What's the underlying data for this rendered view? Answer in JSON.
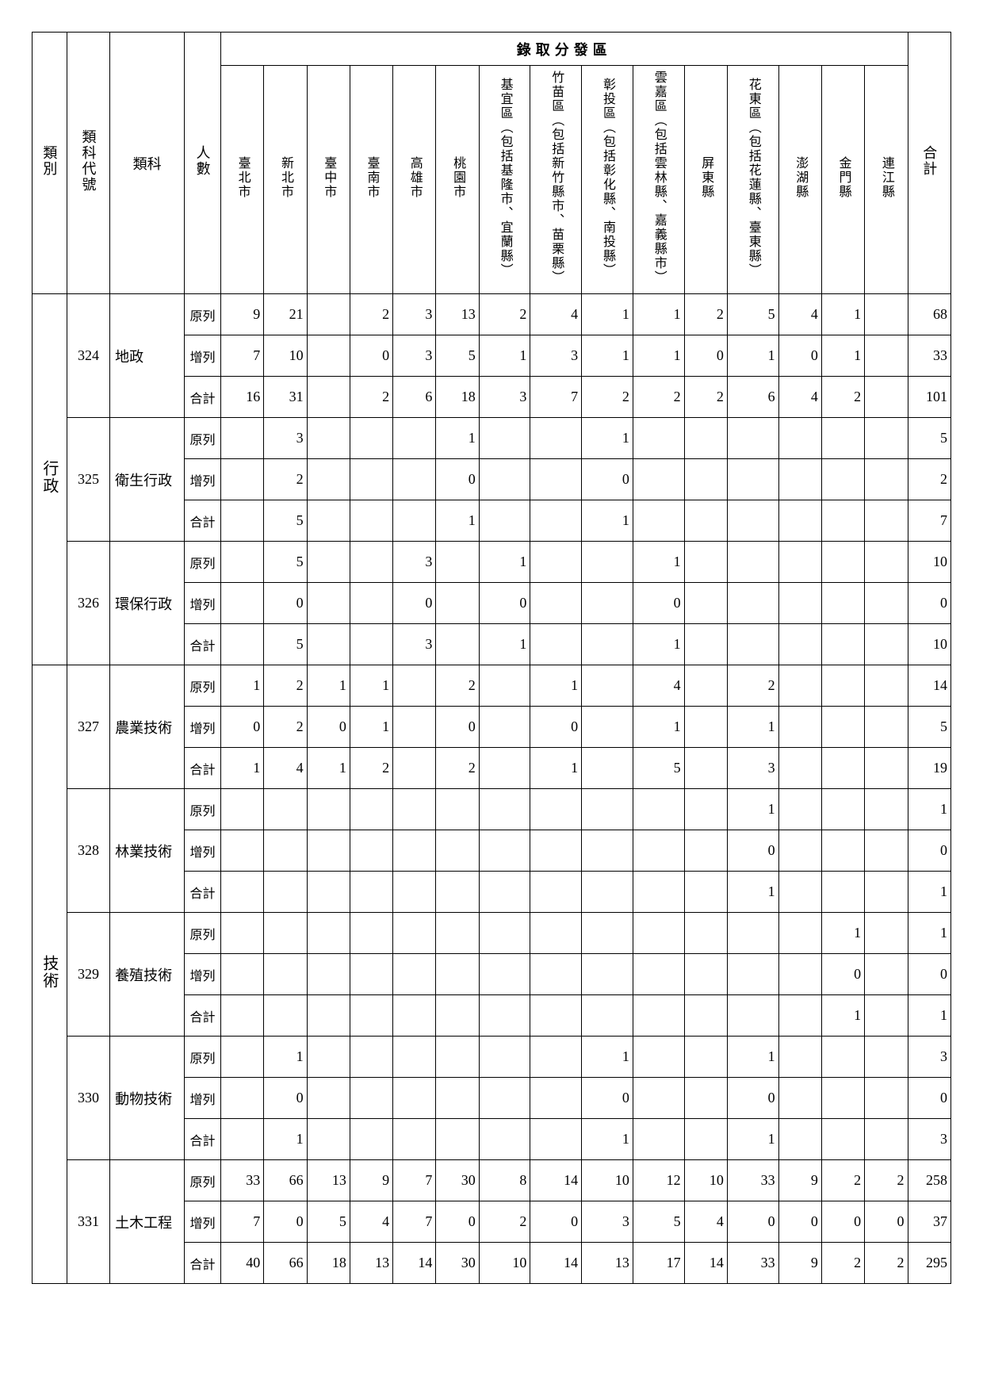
{
  "headers": {
    "category": "類別",
    "code": "類科代號",
    "subject": "類科",
    "count": "人數",
    "regionGroup": "錄取分發區",
    "total": "合計",
    "regions": [
      "臺北市",
      "新北市",
      "臺中市",
      "臺南市",
      "高雄市",
      "桃園市",
      "基宜區（包括基隆市、宜蘭縣）",
      "竹苗區（包括新竹縣市、苗栗縣）",
      "彰投區（包括彰化縣、南投縣）",
      "雲嘉區（包括雲林縣、嘉義縣市）",
      "屏東縣",
      "花東區（包括花蓮縣、臺東縣）",
      "澎湖縣",
      "金門縣",
      "連江縣"
    ]
  },
  "rowTypes": [
    "原列",
    "增列",
    "合計"
  ],
  "categories": [
    {
      "name": "行政",
      "subjects": [
        {
          "code": "324",
          "name": "地政",
          "rows": [
            [
              "9",
              "21",
              "",
              "2",
              "3",
              "13",
              "2",
              "4",
              "1",
              "1",
              "2",
              "5",
              "4",
              "1",
              "",
              "68"
            ],
            [
              "7",
              "10",
              "",
              "0",
              "3",
              "5",
              "1",
              "3",
              "1",
              "1",
              "0",
              "1",
              "0",
              "1",
              "",
              "33"
            ],
            [
              "16",
              "31",
              "",
              "2",
              "6",
              "18",
              "3",
              "7",
              "2",
              "2",
              "2",
              "6",
              "4",
              "2",
              "",
              "101"
            ]
          ]
        },
        {
          "code": "325",
          "name": "衛生行政",
          "rows": [
            [
              "",
              "3",
              "",
              "",
              "",
              "1",
              "",
              "",
              "1",
              "",
              "",
              "",
              "",
              "",
              "",
              "5"
            ],
            [
              "",
              "2",
              "",
              "",
              "",
              "0",
              "",
              "",
              "0",
              "",
              "",
              "",
              "",
              "",
              "",
              "2"
            ],
            [
              "",
              "5",
              "",
              "",
              "",
              "1",
              "",
              "",
              "1",
              "",
              "",
              "",
              "",
              "",
              "",
              "7"
            ]
          ]
        },
        {
          "code": "326",
          "name": "環保行政",
          "rows": [
            [
              "",
              "5",
              "",
              "",
              "3",
              "",
              "1",
              "",
              "",
              "1",
              "",
              "",
              "",
              "",
              "",
              "10"
            ],
            [
              "",
              "0",
              "",
              "",
              "0",
              "",
              "0",
              "",
              "",
              "0",
              "",
              "",
              "",
              "",
              "",
              "0"
            ],
            [
              "",
              "5",
              "",
              "",
              "3",
              "",
              "1",
              "",
              "",
              "1",
              "",
              "",
              "",
              "",
              "",
              "10"
            ]
          ]
        }
      ]
    },
    {
      "name": "技術",
      "subjects": [
        {
          "code": "327",
          "name": "農業技術",
          "rows": [
            [
              "1",
              "2",
              "1",
              "1",
              "",
              "2",
              "",
              "1",
              "",
              "4",
              "",
              "2",
              "",
              "",
              "",
              "14"
            ],
            [
              "0",
              "2",
              "0",
              "1",
              "",
              "0",
              "",
              "0",
              "",
              "1",
              "",
              "1",
              "",
              "",
              "",
              "5"
            ],
            [
              "1",
              "4",
              "1",
              "2",
              "",
              "2",
              "",
              "1",
              "",
              "5",
              "",
              "3",
              "",
              "",
              "",
              "19"
            ]
          ]
        },
        {
          "code": "328",
          "name": "林業技術",
          "rows": [
            [
              "",
              "",
              "",
              "",
              "",
              "",
              "",
              "",
              "",
              "",
              "",
              "1",
              "",
              "",
              "",
              "1"
            ],
            [
              "",
              "",
              "",
              "",
              "",
              "",
              "",
              "",
              "",
              "",
              "",
              "0",
              "",
              "",
              "",
              "0"
            ],
            [
              "",
              "",
              "",
              "",
              "",
              "",
              "",
              "",
              "",
              "",
              "",
              "1",
              "",
              "",
              "",
              "1"
            ]
          ]
        },
        {
          "code": "329",
          "name": "養殖技術",
          "rows": [
            [
              "",
              "",
              "",
              "",
              "",
              "",
              "",
              "",
              "",
              "",
              "",
              "",
              "",
              "1",
              "",
              "1"
            ],
            [
              "",
              "",
              "",
              "",
              "",
              "",
              "",
              "",
              "",
              "",
              "",
              "",
              "",
              "0",
              "",
              "0"
            ],
            [
              "",
              "",
              "",
              "",
              "",
              "",
              "",
              "",
              "",
              "",
              "",
              "",
              "",
              "1",
              "",
              "1"
            ]
          ]
        },
        {
          "code": "330",
          "name": "動物技術",
          "rows": [
            [
              "",
              "1",
              "",
              "",
              "",
              "",
              "",
              "",
              "1",
              "",
              "",
              "1",
              "",
              "",
              "",
              "3"
            ],
            [
              "",
              "0",
              "",
              "",
              "",
              "",
              "",
              "",
              "0",
              "",
              "",
              "0",
              "",
              "",
              "",
              "0"
            ],
            [
              "",
              "1",
              "",
              "",
              "",
              "",
              "",
              "",
              "1",
              "",
              "",
              "1",
              "",
              "",
              "",
              "3"
            ]
          ]
        },
        {
          "code": "331",
          "name": "土木工程",
          "rows": [
            [
              "33",
              "66",
              "13",
              "9",
              "7",
              "30",
              "8",
              "14",
              "10",
              "12",
              "10",
              "33",
              "9",
              "2",
              "2",
              "258"
            ],
            [
              "7",
              "0",
              "5",
              "4",
              "7",
              "0",
              "2",
              "0",
              "3",
              "5",
              "4",
              "0",
              "0",
              "0",
              "0",
              "37"
            ],
            [
              "40",
              "66",
              "18",
              "13",
              "14",
              "30",
              "10",
              "14",
              "13",
              "17",
              "14",
              "33",
              "9",
              "2",
              "2",
              "295"
            ]
          ]
        }
      ]
    }
  ],
  "styling": {
    "border_color": "#000000",
    "background": "#ffffff",
    "font_family": "PMingLiU/serif",
    "header_fontsize": 18,
    "cell_fontsize": 18,
    "rowtype_fontsize": 16
  }
}
